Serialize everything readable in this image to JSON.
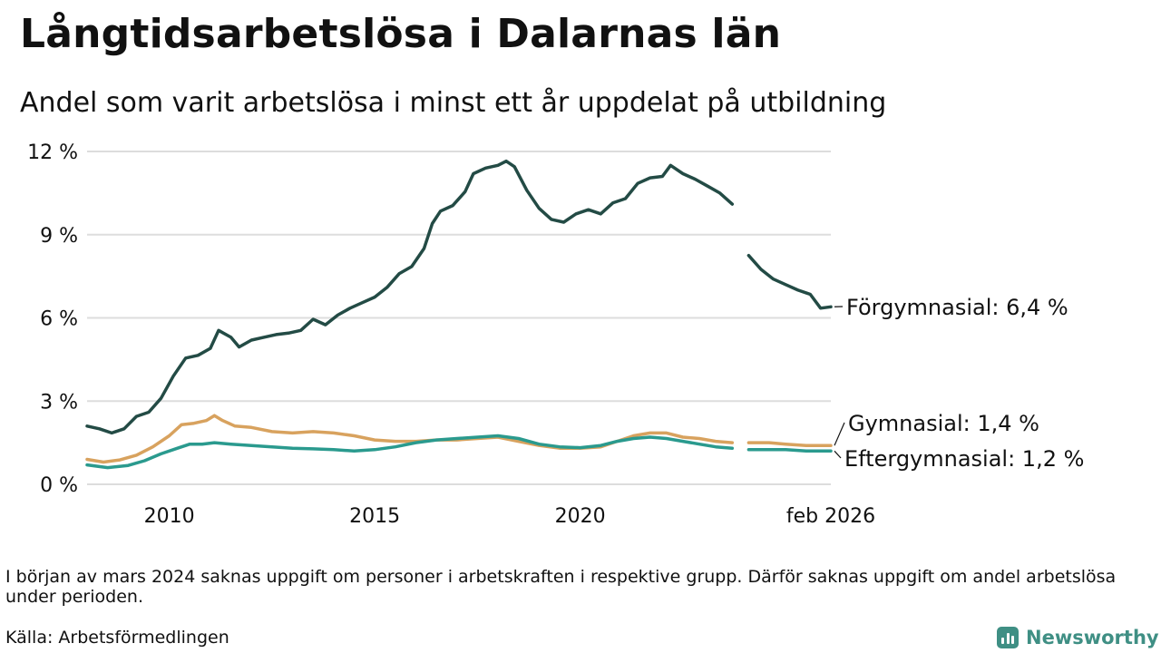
{
  "title": "Långtidsarbetslösa i Dalarnas län",
  "subtitle": "Andel som varit arbetslösa i minst ett år uppdelat på utbildning",
  "note": "I början av mars 2024 saknas uppgift om personer i arbetskraften i respektive grupp. Därför saknas uppgift om andel arbetslösa under perioden.",
  "source": "Källa: Arbetsförmedlingen",
  "brand": "Newsworthy",
  "chart_data": {
    "type": "line",
    "title": "Långtidsarbetslösa i Dalarnas län",
    "subtitle": "Andel som varit arbetslösa i minst ett år uppdelat på utbildning",
    "xlabel": "",
    "ylabel": "",
    "xlim": [
      2008.0,
      2026.1
    ],
    "ylim": [
      0,
      12
    ],
    "y_ticks": [
      0,
      3,
      6,
      9,
      12
    ],
    "y_tick_labels": [
      "0 %",
      "3 %",
      "6 %",
      "9 %",
      "12 %"
    ],
    "x_ticks": [
      2010,
      2015,
      2020,
      2026.1
    ],
    "x_tick_labels": [
      "2010",
      "2015",
      "2020",
      "feb 2026"
    ],
    "grid": true,
    "gap": [
      2023.8,
      2024.1
    ],
    "series": [
      {
        "name": "Förgymnasial",
        "end_label": "Förgymnasial: 6,4 %",
        "color": "#234b45",
        "points": [
          [
            2008.0,
            2.1
          ],
          [
            2008.3,
            2.0
          ],
          [
            2008.6,
            1.85
          ],
          [
            2008.9,
            2.0
          ],
          [
            2009.2,
            2.45
          ],
          [
            2009.5,
            2.6
          ],
          [
            2009.8,
            3.1
          ],
          [
            2010.1,
            3.9
          ],
          [
            2010.4,
            4.55
          ],
          [
            2010.7,
            4.65
          ],
          [
            2011.0,
            4.9
          ],
          [
            2011.2,
            5.55
          ],
          [
            2011.5,
            5.3
          ],
          [
            2011.7,
            4.95
          ],
          [
            2012.0,
            5.2
          ],
          [
            2012.3,
            5.3
          ],
          [
            2012.6,
            5.4
          ],
          [
            2012.9,
            5.45
          ],
          [
            2013.2,
            5.55
          ],
          [
            2013.5,
            5.95
          ],
          [
            2013.8,
            5.75
          ],
          [
            2014.1,
            6.1
          ],
          [
            2014.4,
            6.35
          ],
          [
            2014.7,
            6.55
          ],
          [
            2015.0,
            6.75
          ],
          [
            2015.3,
            7.1
          ],
          [
            2015.6,
            7.6
          ],
          [
            2015.9,
            7.85
          ],
          [
            2016.2,
            8.5
          ],
          [
            2016.4,
            9.4
          ],
          [
            2016.6,
            9.85
          ],
          [
            2016.9,
            10.05
          ],
          [
            2017.2,
            10.55
          ],
          [
            2017.4,
            11.2
          ],
          [
            2017.7,
            11.4
          ],
          [
            2018.0,
            11.5
          ],
          [
            2018.2,
            11.65
          ],
          [
            2018.4,
            11.45
          ],
          [
            2018.7,
            10.6
          ],
          [
            2019.0,
            9.95
          ],
          [
            2019.3,
            9.55
          ],
          [
            2019.6,
            9.45
          ],
          [
            2019.9,
            9.75
          ],
          [
            2020.2,
            9.9
          ],
          [
            2020.5,
            9.75
          ],
          [
            2020.8,
            10.15
          ],
          [
            2021.1,
            10.3
          ],
          [
            2021.4,
            10.85
          ],
          [
            2021.7,
            11.05
          ],
          [
            2022.0,
            11.1
          ],
          [
            2022.2,
            11.5
          ],
          [
            2022.5,
            11.2
          ],
          [
            2022.8,
            11.0
          ],
          [
            2023.1,
            10.75
          ],
          [
            2023.4,
            10.5
          ],
          [
            2023.7,
            10.1
          ],
          [
            2024.1,
            8.25
          ],
          [
            2024.4,
            7.75
          ],
          [
            2024.7,
            7.4
          ],
          [
            2025.0,
            7.2
          ],
          [
            2025.3,
            7.0
          ],
          [
            2025.6,
            6.85
          ],
          [
            2025.85,
            6.35
          ],
          [
            2026.1,
            6.4
          ]
        ]
      },
      {
        "name": "Gymnasial",
        "end_label": "Gymnasial: 1,4 %",
        "color": "#d8a25e",
        "points": [
          [
            2008.0,
            0.9
          ],
          [
            2008.4,
            0.8
          ],
          [
            2008.8,
            0.88
          ],
          [
            2009.2,
            1.05
          ],
          [
            2009.6,
            1.35
          ],
          [
            2010.0,
            1.75
          ],
          [
            2010.3,
            2.15
          ],
          [
            2010.6,
            2.2
          ],
          [
            2010.9,
            2.3
          ],
          [
            2011.1,
            2.48
          ],
          [
            2011.3,
            2.3
          ],
          [
            2011.6,
            2.1
          ],
          [
            2012.0,
            2.05
          ],
          [
            2012.5,
            1.9
          ],
          [
            2013.0,
            1.85
          ],
          [
            2013.5,
            1.9
          ],
          [
            2014.0,
            1.85
          ],
          [
            2014.5,
            1.75
          ],
          [
            2015.0,
            1.6
          ],
          [
            2015.5,
            1.55
          ],
          [
            2016.0,
            1.55
          ],
          [
            2016.5,
            1.6
          ],
          [
            2017.0,
            1.6
          ],
          [
            2017.5,
            1.65
          ],
          [
            2018.0,
            1.7
          ],
          [
            2018.5,
            1.55
          ],
          [
            2019.0,
            1.4
          ],
          [
            2019.5,
            1.3
          ],
          [
            2020.0,
            1.3
          ],
          [
            2020.5,
            1.35
          ],
          [
            2020.9,
            1.55
          ],
          [
            2021.3,
            1.75
          ],
          [
            2021.7,
            1.85
          ],
          [
            2022.1,
            1.85
          ],
          [
            2022.5,
            1.7
          ],
          [
            2022.9,
            1.65
          ],
          [
            2023.3,
            1.55
          ],
          [
            2023.7,
            1.5
          ],
          [
            2024.1,
            1.5
          ],
          [
            2024.6,
            1.5
          ],
          [
            2025.0,
            1.45
          ],
          [
            2025.5,
            1.4
          ],
          [
            2026.1,
            1.4
          ]
        ]
      },
      {
        "name": "Eftergymnasial",
        "end_label": "Eftergymnasial: 1,2 %",
        "color": "#2a9a8e",
        "points": [
          [
            2008.0,
            0.7
          ],
          [
            2008.5,
            0.6
          ],
          [
            2009.0,
            0.68
          ],
          [
            2009.4,
            0.85
          ],
          [
            2009.8,
            1.1
          ],
          [
            2010.2,
            1.3
          ],
          [
            2010.5,
            1.45
          ],
          [
            2010.8,
            1.45
          ],
          [
            2011.1,
            1.5
          ],
          [
            2011.5,
            1.45
          ],
          [
            2012.0,
            1.4
          ],
          [
            2012.5,
            1.35
          ],
          [
            2013.0,
            1.3
          ],
          [
            2013.5,
            1.28
          ],
          [
            2014.0,
            1.25
          ],
          [
            2014.5,
            1.2
          ],
          [
            2015.0,
            1.25
          ],
          [
            2015.5,
            1.35
          ],
          [
            2016.0,
            1.5
          ],
          [
            2016.5,
            1.6
          ],
          [
            2017.0,
            1.65
          ],
          [
            2017.5,
            1.7
          ],
          [
            2018.0,
            1.75
          ],
          [
            2018.5,
            1.65
          ],
          [
            2019.0,
            1.45
          ],
          [
            2019.5,
            1.35
          ],
          [
            2020.0,
            1.32
          ],
          [
            2020.5,
            1.4
          ],
          [
            2020.9,
            1.55
          ],
          [
            2021.3,
            1.65
          ],
          [
            2021.7,
            1.7
          ],
          [
            2022.1,
            1.65
          ],
          [
            2022.5,
            1.55
          ],
          [
            2022.9,
            1.45
          ],
          [
            2023.3,
            1.35
          ],
          [
            2023.7,
            1.3
          ],
          [
            2024.1,
            1.25
          ],
          [
            2024.6,
            1.25
          ],
          [
            2025.0,
            1.25
          ],
          [
            2025.5,
            1.2
          ],
          [
            2026.1,
            1.2
          ]
        ]
      }
    ]
  }
}
